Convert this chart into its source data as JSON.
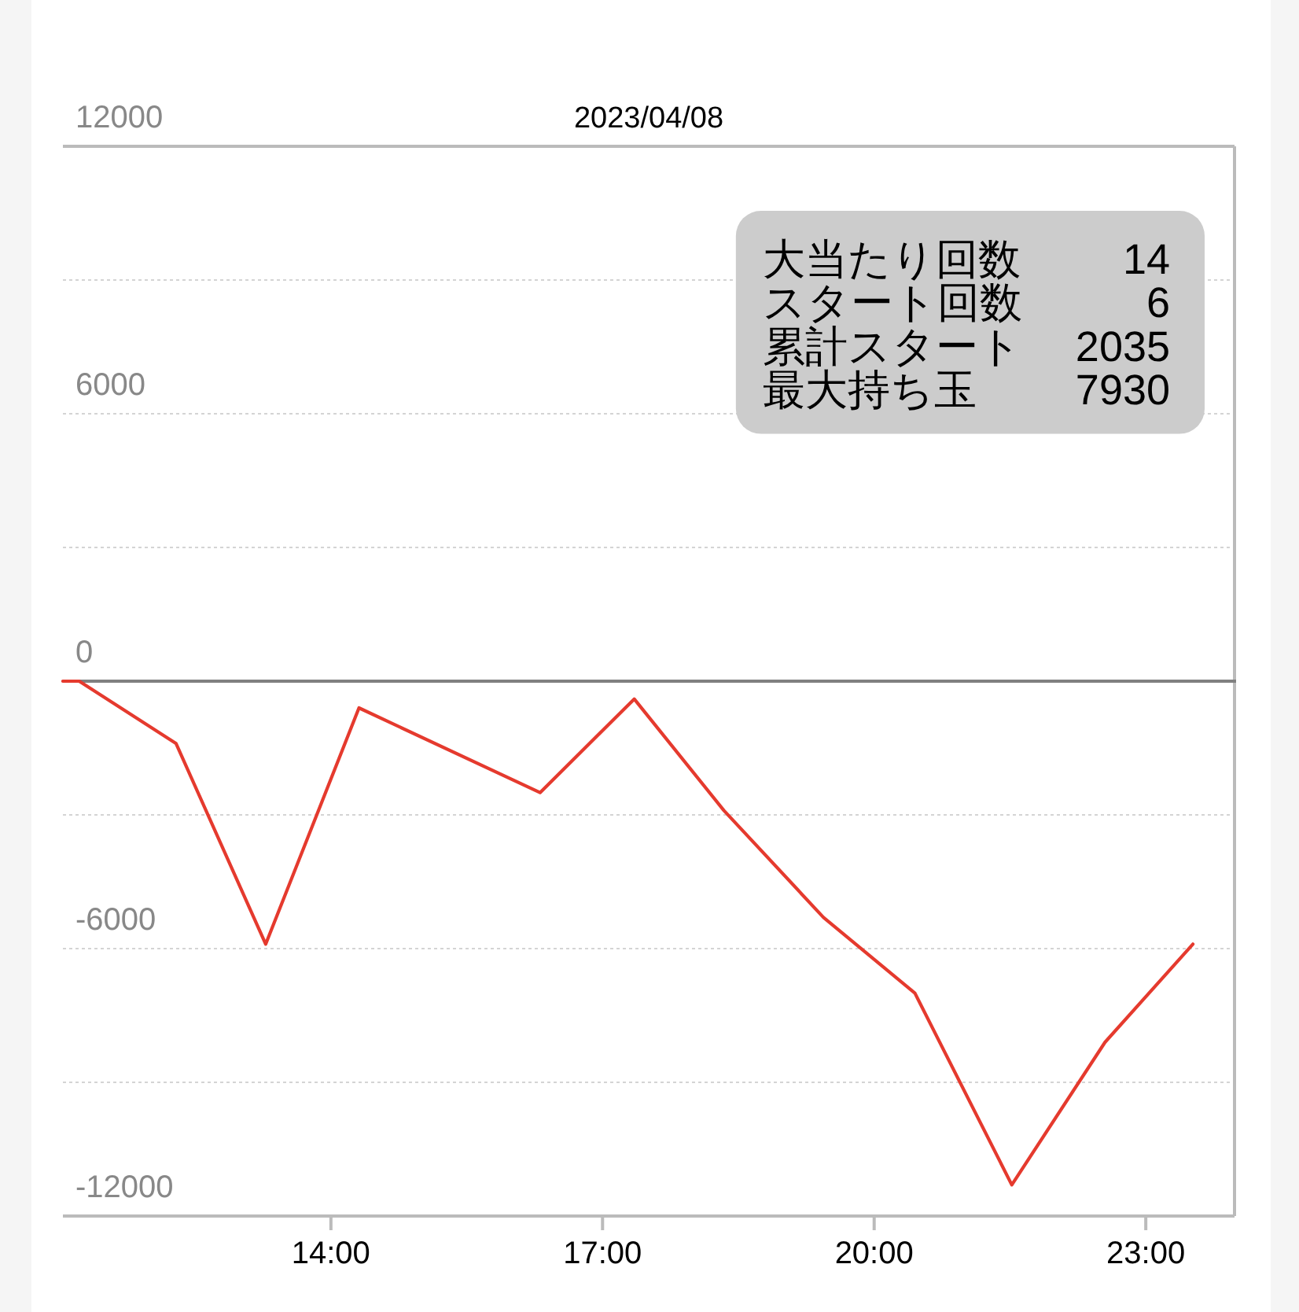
{
  "chart_data": {
    "type": "line",
    "title": "2023/04/08",
    "x": [
      11.04,
      11.22,
      12.29,
      13.28,
      14.31,
      16.31,
      17.35,
      18.34,
      19.44,
      20.45,
      21.52,
      22.55,
      23.52
    ],
    "series": [
      {
        "color": "#e53a2e",
        "values": [
          0,
          0,
          -1400,
          -5900,
          -600,
          -2500,
          -400,
          -2900,
          -5300,
          -7000,
          -11300,
          -8100,
          -5900
        ]
      }
    ],
    "xlim": [
      11.04,
      23.98
    ],
    "xticks": [
      {
        "value": 14,
        "label": "14:00"
      },
      {
        "value": 17,
        "label": "17:00"
      },
      {
        "value": 20,
        "label": "20:00"
      },
      {
        "value": 23,
        "label": "23:00"
      }
    ],
    "ylim": [
      -12000,
      12000
    ],
    "yticks": [
      12000,
      {
        "value": 9000,
        "label": null
      },
      6000,
      {
        "value": 3000,
        "label": null
      },
      0,
      {
        "value": -3000,
        "label": null
      },
      -6000,
      {
        "value": -9000,
        "label": null
      },
      -12000
    ],
    "grid": "y",
    "ref_lines": [
      {
        "axis": "y",
        "value": 0,
        "color": "#808080"
      }
    ],
    "annotations": [
      "大当たり回数",
      "14",
      "スタート回数",
      "6",
      "累計スタート",
      "2035",
      "最大持ち玉",
      "7930"
    ],
    "marker": "none",
    "line_style": "solid"
  }
}
